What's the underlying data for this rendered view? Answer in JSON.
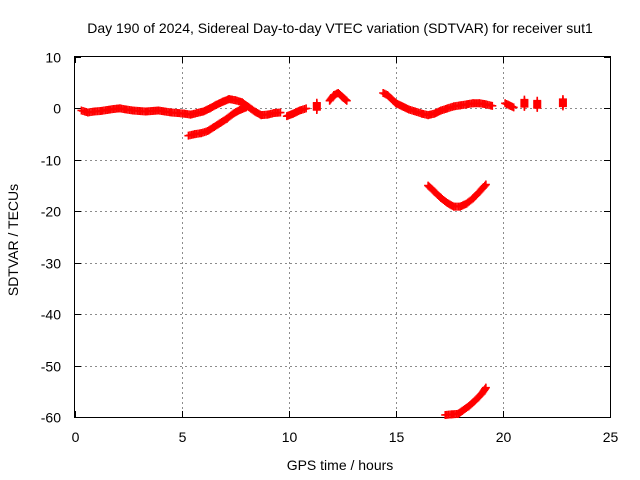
{
  "chart_data": {
    "type": "scatter",
    "title": "Day 190 of 2024, Sidereal Day-to-day VTEC variation (SDTVAR) for receiver sut1",
    "xlabel": "GPS time / hours",
    "ylabel": "SDTVAR / TECUs",
    "xlim": [
      0,
      25
    ],
    "ylim": [
      -60,
      10
    ],
    "xticks": [
      "0",
      "5",
      "10",
      "15",
      "20",
      "25"
    ],
    "xtick_values": [
      0,
      5,
      10,
      15,
      20,
      25
    ],
    "yticks": [
      "10",
      "0",
      "-10",
      "-20",
      "-30",
      "-40",
      "-50",
      "-60"
    ],
    "ytick_values": [
      10,
      0,
      -10,
      -20,
      -30,
      -40,
      -50,
      -60
    ],
    "grid": true,
    "marker": "plus",
    "color": "#ff0000",
    "series": [
      {
        "name": "main",
        "segments": [
          [
            [
              0.3,
              -0.4
            ],
            [
              0.6,
              -0.8
            ],
            [
              0.9,
              -0.6
            ],
            [
              1.2,
              -0.5
            ],
            [
              1.5,
              -0.3
            ],
            [
              1.8,
              -0.1
            ],
            [
              2.1,
              0.0
            ],
            [
              2.4,
              -0.2
            ],
            [
              2.7,
              -0.4
            ],
            [
              3.0,
              -0.5
            ],
            [
              3.3,
              -0.6
            ],
            [
              3.6,
              -0.5
            ],
            [
              3.9,
              -0.4
            ],
            [
              4.2,
              -0.6
            ],
            [
              4.5,
              -0.8
            ],
            [
              4.8,
              -0.9
            ],
            [
              5.1,
              -1.0
            ],
            [
              5.4,
              -1.2
            ],
            [
              5.7,
              -0.9
            ],
            [
              6.0,
              -0.6
            ],
            [
              6.3,
              0.0
            ],
            [
              6.6,
              0.7
            ],
            [
              6.9,
              1.3
            ],
            [
              7.2,
              1.8
            ],
            [
              7.5,
              1.6
            ],
            [
              7.8,
              1.2
            ],
            [
              8.1,
              0.3
            ],
            [
              8.4,
              -0.6
            ],
            [
              8.7,
              -1.3
            ],
            [
              9.0,
              -1.2
            ],
            [
              9.3,
              -0.9
            ],
            [
              9.6,
              -0.8
            ]
          ],
          [
            [
              9.9,
              -1.5
            ],
            [
              10.2,
              -1.0
            ],
            [
              10.5,
              -0.4
            ],
            [
              10.8,
              0.0
            ]
          ],
          [
            [
              11.3,
              0.4
            ]
          ],
          [
            [
              11.9,
              1.5
            ],
            [
              12.1,
              2.6
            ],
            [
              12.3,
              3.0
            ],
            [
              12.5,
              2.2
            ],
            [
              12.7,
              1.5
            ]
          ],
          [
            [
              14.4,
              3.0
            ],
            [
              14.6,
              2.6
            ],
            [
              14.8,
              1.8
            ],
            [
              15.0,
              1.0
            ],
            [
              15.3,
              0.4
            ],
            [
              15.6,
              -0.2
            ],
            [
              15.9,
              -0.6
            ],
            [
              16.2,
              -1.0
            ],
            [
              16.5,
              -1.3
            ],
            [
              16.8,
              -1.0
            ],
            [
              17.1,
              -0.4
            ],
            [
              17.4,
              0.0
            ],
            [
              17.7,
              0.4
            ],
            [
              18.0,
              0.6
            ],
            [
              18.3,
              0.8
            ],
            [
              18.6,
              1.0
            ],
            [
              18.9,
              1.0
            ],
            [
              19.2,
              0.8
            ],
            [
              19.5,
              0.5
            ]
          ],
          [
            [
              20.1,
              1.0
            ],
            [
              20.3,
              0.6
            ],
            [
              20.5,
              0.2
            ]
          ],
          [
            [
              21.0,
              1.0
            ]
          ],
          [
            [
              21.6,
              0.8
            ]
          ],
          [
            [
              22.8,
              1.1
            ]
          ]
        ]
      },
      {
        "name": "lower-branch",
        "segments": [
          [
            [
              5.3,
              -5.3
            ],
            [
              5.6,
              -5.0
            ],
            [
              5.9,
              -4.8
            ],
            [
              6.2,
              -4.4
            ],
            [
              6.5,
              -3.6
            ],
            [
              6.8,
              -2.8
            ],
            [
              7.1,
              -2.0
            ],
            [
              7.4,
              -1.0
            ],
            [
              7.7,
              -0.3
            ],
            [
              8.0,
              0.2
            ]
          ]
        ]
      },
      {
        "name": "v-curve",
        "segments": [
          [
            [
              16.5,
              -15.0
            ],
            [
              16.8,
              -16.2
            ],
            [
              17.1,
              -17.4
            ],
            [
              17.4,
              -18.4
            ],
            [
              17.7,
              -19.1
            ],
            [
              18.0,
              -19.1
            ],
            [
              18.3,
              -18.5
            ],
            [
              18.6,
              -17.5
            ],
            [
              18.9,
              -16.2
            ],
            [
              19.2,
              -14.8
            ]
          ]
        ]
      },
      {
        "name": "bottom-curve",
        "segments": [
          [
            [
              17.3,
              -59.6
            ],
            [
              17.6,
              -59.5
            ],
            [
              17.9,
              -59.4
            ],
            [
              18.1,
              -58.8
            ],
            [
              18.4,
              -57.9
            ],
            [
              18.7,
              -56.8
            ],
            [
              19.0,
              -55.5
            ],
            [
              19.2,
              -54.3
            ]
          ]
        ]
      }
    ]
  }
}
